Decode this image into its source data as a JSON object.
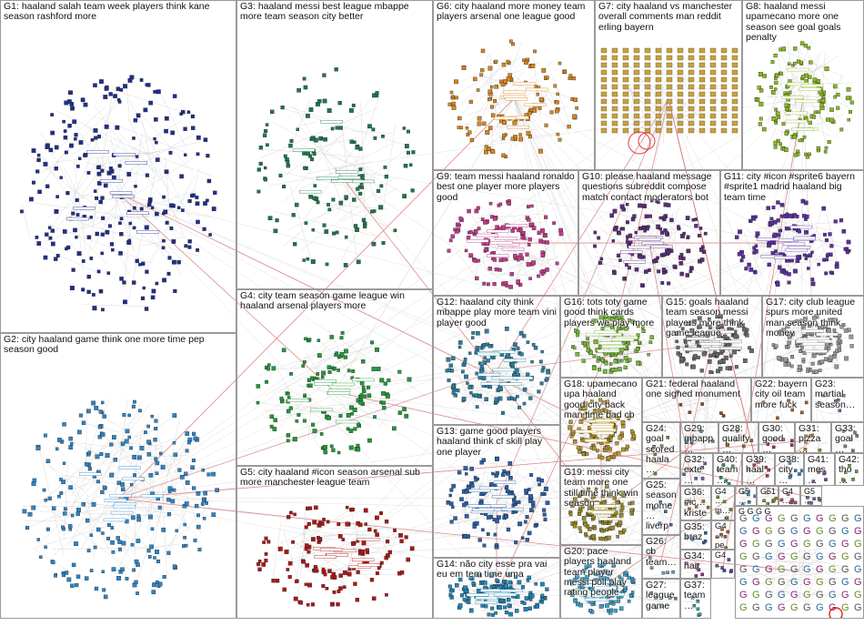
{
  "graph": {
    "groups": [
      {
        "id": "G1",
        "label": "G1: haaland salah team week players think kane season rashford more",
        "color": "#1f2f8f",
        "kind": "dense"
      },
      {
        "id": "G2",
        "label": "G2: city haaland game think one more time pep season good",
        "color": "#2b86c8",
        "kind": "dense"
      },
      {
        "id": "G3",
        "label": "G3: haaland messi best league mbappe more team season city better",
        "color": "#1a7a4c",
        "kind": "ring"
      },
      {
        "id": "G4",
        "label": "G4: city team season game league win haaland arsenal players more",
        "color": "#1f9a3a",
        "kind": "ring"
      },
      {
        "id": "G5",
        "label": "G5: city haaland #icon season arsenal sub more manchester league team",
        "color": "#b01515",
        "kind": "ring"
      },
      {
        "id": "G6",
        "label": "G6: city haaland more money team players arsenal one league good",
        "color": "#d9861a",
        "kind": "ring"
      },
      {
        "id": "G7",
        "label": "G7: city haaland vs manchester overall comments man reddit erling bayern",
        "color": "#c8a040",
        "kind": "grid"
      },
      {
        "id": "G8",
        "label": "G8: haaland messi upamecano more one season see goal goals penalty",
        "color": "#8ab81e",
        "kind": "ring"
      },
      {
        "id": "G9",
        "label": "G9: team messi haaland ronaldo best one player more players good",
        "color": "#c43a8a",
        "kind": "ring"
      },
      {
        "id": "G10",
        "label": "G10: please haaland message questions subreddit compose match contact moderators bot",
        "color": "#5a2d7a",
        "kind": "ring"
      },
      {
        "id": "G11",
        "label": "G11: city #icon #sprite6 bayern #sprite1 madrid haaland big team time",
        "color": "#5b2ea0",
        "kind": "ring"
      },
      {
        "id": "G12",
        "label": "G12: haaland city think mbappe play more team vini player good",
        "color": "#2a7fa0",
        "kind": "ring"
      },
      {
        "id": "G13",
        "label": "G13: game good players haaland think cf skill play one player",
        "color": "#2a5fa8",
        "kind": "ring"
      },
      {
        "id": "G14",
        "label": "G14: não city esse pra vai eu em tem time uma",
        "color": "#1d86b8",
        "kind": "ring"
      },
      {
        "id": "G15",
        "label": "G15: goals haaland team season messi players more think game league",
        "color": "#6a6a6a",
        "kind": "ring"
      },
      {
        "id": "G16",
        "label": "G16: tots toty game good think cards players we play more",
        "color": "#7ab83a",
        "kind": "ring"
      },
      {
        "id": "G17",
        "label": "G17: city club league spurs more united man season think money",
        "color": "#999999",
        "kind": "ring"
      },
      {
        "id": "G18",
        "label": "G18: upamecano upa haaland good city back man time bad cb",
        "color": "#b8952a",
        "kind": "ring"
      },
      {
        "id": "G19",
        "label": "G19: messi city team more one still time think win season",
        "color": "#9a8a2a",
        "kind": "ring"
      },
      {
        "id": "G20",
        "label": "G20: pace players haaland team player messi poll play rating people",
        "color": "#3aa0c8",
        "kind": "ring"
      },
      {
        "id": "G21",
        "label": "G21: federal haaland one signed monument",
        "color": "#8a4a2a",
        "kind": "small"
      },
      {
        "id": "G22",
        "label": "G22: bayern city oil team more fuck",
        "color": "#aa5a1a",
        "kind": "small"
      },
      {
        "id": "G23",
        "label": "G23: martial season…",
        "color": "#6a6a9a",
        "kind": "small"
      },
      {
        "id": "G24",
        "label": "G24: goal scored haala…",
        "color": "#5a8a3a",
        "kind": "small"
      },
      {
        "id": "G25",
        "label": "G25: season mome… liverp…",
        "color": "#3a6aaa",
        "kind": "small"
      },
      {
        "id": "G26",
        "label": "G26: cb team…",
        "color": "#6a9aba",
        "kind": "small"
      },
      {
        "id": "G27",
        "label": "G27: league game…",
        "color": "#4a8a6a",
        "kind": "small"
      },
      {
        "id": "G28",
        "label": "G28: qualify…",
        "color": "#8a6a2a",
        "kind": "small"
      },
      {
        "id": "G29",
        "label": "G29: mbapp…",
        "color": "#2a6a9a",
        "kind": "small"
      },
      {
        "id": "G30",
        "label": "G30: good…",
        "color": "#9a2a6a",
        "kind": "small"
      },
      {
        "id": "G31",
        "label": "G31: pizza…",
        "color": "#aa7a1a",
        "kind": "small"
      },
      {
        "id": "G33",
        "label": "G33: goal…",
        "color": "#7a7a7a",
        "kind": "small"
      },
      {
        "id": "G32",
        "label": "G32: exte…",
        "color": "#6a5aaa",
        "kind": "small"
      },
      {
        "id": "G40",
        "label": "G40: team…",
        "color": "#2a8a5a",
        "kind": "small"
      },
      {
        "id": "G39",
        "label": "G39: haal…",
        "color": "#aa3a3a",
        "kind": "small"
      },
      {
        "id": "G38",
        "label": "G38: city…",
        "color": "#3a7aaa",
        "kind": "small"
      },
      {
        "id": "G41",
        "label": "G41: mes…",
        "color": "#7a3a9a",
        "kind": "small"
      },
      {
        "id": "G42",
        "label": "G42: tho…",
        "color": "#5a9a3a",
        "kind": "small"
      },
      {
        "id": "G36",
        "label": "G36: #ic… kriste…",
        "color": "#aa6a2a",
        "kind": "small"
      },
      {
        "id": "G35",
        "label": "G35: braz",
        "color": "#2a5aaa",
        "kind": "small"
      },
      {
        "id": "G34",
        "label": "G34: hair",
        "color": "#8a2a8a",
        "kind": "small"
      },
      {
        "id": "G37",
        "label": "G37: team…",
        "color": "#3a9a9a",
        "kind": "small"
      },
      {
        "id": "G4x",
        "label": "G4… m…",
        "color": "#6a8a2a",
        "kind": "small"
      },
      {
        "id": "G4y",
        "label": "G4… pe…",
        "color": "#9a5a2a",
        "kind": "small"
      },
      {
        "id": "G4z",
        "label": "G4…",
        "color": "#4a4a9a",
        "kind": "small"
      },
      {
        "id": "G5x",
        "label": "G5…",
        "color": "#2a7a9a",
        "kind": "small"
      },
      {
        "id": "G51",
        "label": "G51",
        "color": "#8a8a2a",
        "kind": "small"
      },
      {
        "id": "G4w",
        "label": "G4…",
        "color": "#aa4a6a",
        "kind": "small"
      },
      {
        "id": "G5y",
        "label": "G5…",
        "color": "#5a6a8a",
        "kind": "small"
      },
      {
        "id": "Gm",
        "label": "G G G G",
        "color": "#7a7a9a",
        "kind": "mosaic"
      }
    ]
  }
}
